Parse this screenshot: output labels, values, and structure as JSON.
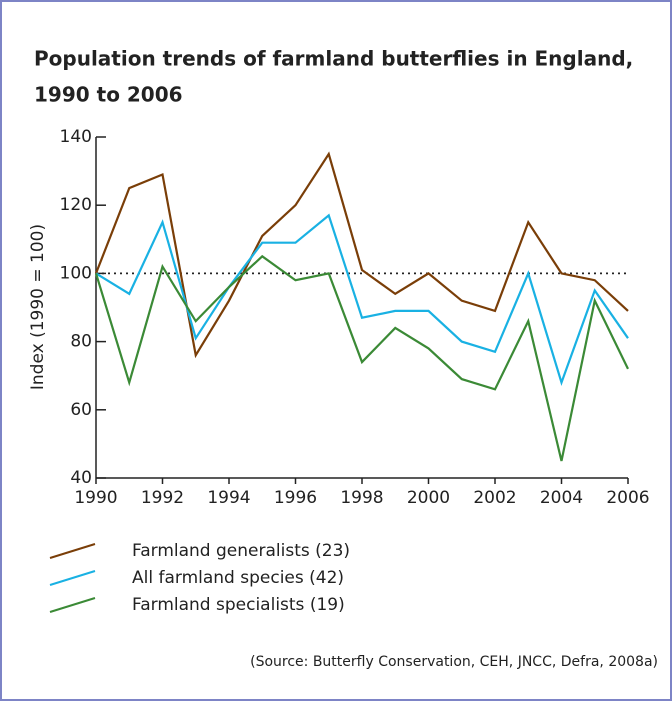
{
  "chart_data": {
    "type": "line",
    "title": [
      "Population trends of farmland butterflies in England,",
      "1990 to 2006"
    ],
    "y_label": "Index (1990 = 100)",
    "source": "(Source: Butterfly Conservation, CEH, JNCC, Defra, 2008a)",
    "x": [
      1990,
      1991,
      1992,
      1993,
      1994,
      1995,
      1996,
      1997,
      1998,
      1999,
      2000,
      2001,
      2002,
      2003,
      2004,
      2005,
      2006
    ],
    "series": [
      {
        "name": "Farmland generalists (23)",
        "color": "#7a3e08",
        "values": [
          100,
          125,
          129,
          76,
          92,
          111,
          120,
          135,
          101,
          94,
          100,
          92,
          89,
          115,
          100,
          98,
          89
        ]
      },
      {
        "name": "All farmland species (42)",
        "color": "#19b1e3",
        "values": [
          100,
          94,
          115,
          81,
          96,
          109,
          109,
          117,
          87,
          89,
          89,
          80,
          77,
          100,
          68,
          95,
          81
        ]
      },
      {
        "name": "Farmland specialists (19)",
        "color": "#3b8a36",
        "values": [
          100,
          68,
          102,
          86,
          96,
          105,
          98,
          100,
          74,
          84,
          78,
          69,
          66,
          86,
          45,
          92,
          72
        ]
      }
    ],
    "reference_line": 100,
    "xlim": [
      1990,
      2006
    ],
    "xticks": [
      1990,
      1992,
      1994,
      1996,
      1998,
      2000,
      2002,
      2004,
      2006
    ],
    "ylim": [
      40,
      140
    ],
    "yticks": [
      40,
      60,
      80,
      100,
      120,
      140
    ]
  }
}
